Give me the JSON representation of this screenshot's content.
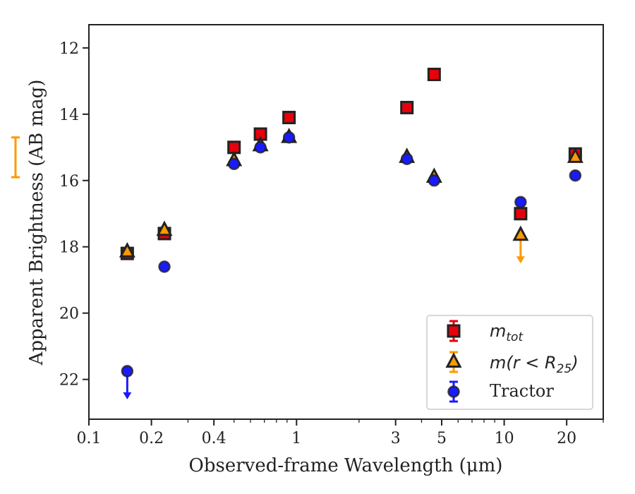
{
  "chart_data": {
    "type": "scatter",
    "xlabel": "Observed-frame Wavelength (μm)",
    "ylabel": "Apparent Brightness (AB mag)",
    "xscale": "log",
    "xlim": [
      0.1,
      30
    ],
    "ylim": [
      23.2,
      11.3
    ],
    "y_inverted": true,
    "x_ticks": [
      0.1,
      0.2,
      0.4,
      1,
      3,
      5,
      10,
      20
    ],
    "x_tick_labels": [
      "0.1",
      "0.2",
      "0.4",
      "1",
      "3",
      "5",
      "10",
      "20"
    ],
    "y_ticks": [
      12,
      14,
      16,
      18,
      20,
      22
    ],
    "y_tick_labels": [
      "12",
      "14",
      "16",
      "18",
      "20",
      "22"
    ],
    "grid": false,
    "legend_position": "bottom-right",
    "colors": {
      "m_tot": "#e8000b",
      "m_r25": "#ff9900",
      "tractor": "#1a1aff",
      "edge": "#222222"
    },
    "series": [
      {
        "key": "m_tot",
        "marker": "square",
        "points": [
          {
            "x": 0.153,
            "y": 18.2
          },
          {
            "x": 0.231,
            "y": 17.6
          },
          {
            "x": 0.5,
            "y": 15.0
          },
          {
            "x": 0.67,
            "y": 14.6
          },
          {
            "x": 0.92,
            "y": 14.1
          },
          {
            "x": 3.4,
            "y": 13.8
          },
          {
            "x": 4.6,
            "y": 12.8
          },
          {
            "x": 12.0,
            "y": 17.0
          },
          {
            "x": 22.0,
            "y": 15.2
          }
        ]
      },
      {
        "key": "m_r25",
        "marker": "triangle",
        "points": [
          {
            "x": 0.153,
            "y": 18.15
          },
          {
            "x": 0.231,
            "y": 17.5
          },
          {
            "x": 0.5,
            "y": 15.4
          },
          {
            "x": 0.67,
            "y": 14.95
          },
          {
            "x": 0.92,
            "y": 14.7
          },
          {
            "x": 3.4,
            "y": 15.3
          },
          {
            "x": 4.6,
            "y": 15.9
          },
          {
            "x": 12.0,
            "y": 17.65,
            "upper_limit": true
          },
          {
            "x": 22.0,
            "y": 15.3,
            "yerr": 0.6
          }
        ]
      },
      {
        "key": "tractor",
        "marker": "circle",
        "points": [
          {
            "x": 0.153,
            "y": 21.75,
            "upper_limit": true
          },
          {
            "x": 0.231,
            "y": 18.6
          },
          {
            "x": 0.5,
            "y": 15.5
          },
          {
            "x": 0.67,
            "y": 15.0
          },
          {
            "x": 0.92,
            "y": 14.7
          },
          {
            "x": 3.4,
            "y": 15.35
          },
          {
            "x": 4.6,
            "y": 16.0
          },
          {
            "x": 12.0,
            "y": 16.65
          },
          {
            "x": 22.0,
            "y": 15.85
          }
        ]
      }
    ],
    "legend": {
      "m_tot": {
        "base": "m",
        "sub": "tot"
      },
      "m_r25": {
        "prefix": "m",
        "inner": "(r < R",
        "sub": "25",
        "suffix": ")"
      },
      "tractor": {
        "label": "Tractor"
      }
    }
  }
}
